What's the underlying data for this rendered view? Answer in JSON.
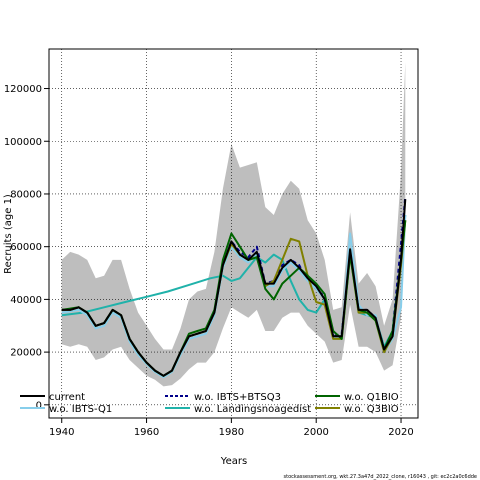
{
  "chart_data": {
    "type": "line",
    "xlabel": "Years",
    "ylabel": "Recruits (age 1)",
    "xlim": [
      1937,
      2024
    ],
    "ylim": [
      -5000,
      135000
    ],
    "x_ticks": [
      1940,
      1960,
      1980,
      2000,
      2020
    ],
    "y_ticks": [
      0,
      20000,
      40000,
      60000,
      80000,
      100000,
      120000
    ],
    "grid": true,
    "legend_position": "bottom",
    "footnote": "stockassessment.org, wkt.27.3a47d_2022_clone, r16043 , git: ec2c2a0c6dde",
    "confidence_band": {
      "color": "#bebebe",
      "x": [
        1940,
        1942,
        1944,
        1946,
        1948,
        1950,
        1952,
        1954,
        1956,
        1958,
        1960,
        1962,
        1964,
        1966,
        1968,
        1970,
        1972,
        1974,
        1976,
        1978,
        1980,
        1982,
        1984,
        1986,
        1988,
        1990,
        1992,
        1994,
        1996,
        1998,
        2000,
        2002,
        2004,
        2006,
        2008,
        2010,
        2012,
        2014,
        2016,
        2018,
        2020,
        2021
      ],
      "lower": [
        23000,
        22000,
        23000,
        22000,
        17000,
        18000,
        21000,
        22000,
        17000,
        14000,
        11000,
        9500,
        7000,
        7500,
        10000,
        13500,
        16000,
        16000,
        20000,
        29000,
        37000,
        35000,
        33000,
        36000,
        28000,
        28000,
        33000,
        35000,
        35000,
        30000,
        27000,
        24000,
        16000,
        17000,
        38000,
        22000,
        22000,
        20000,
        13000,
        15000,
        33000,
        68000
      ],
      "upper": [
        55000,
        58000,
        57000,
        55000,
        48000,
        49000,
        55000,
        55000,
        44000,
        35000,
        30000,
        25000,
        21000,
        21000,
        29000,
        40000,
        43000,
        44000,
        58000,
        82000,
        99000,
        90000,
        91000,
        92000,
        75000,
        72000,
        80000,
        85000,
        82000,
        70000,
        65000,
        55000,
        36000,
        37000,
        73000,
        46000,
        50000,
        45000,
        30000,
        40000,
        88000,
        130000
      ]
    },
    "series": [
      {
        "name": "current",
        "color": "#000000",
        "dash": "solid",
        "x": [
          1940,
          1942,
          1944,
          1946,
          1948,
          1950,
          1952,
          1954,
          1956,
          1958,
          1960,
          1962,
          1964,
          1966,
          1968,
          1970,
          1972,
          1974,
          1976,
          1978,
          1980,
          1982,
          1984,
          1986,
          1988,
          1990,
          1992,
          1994,
          1996,
          1998,
          2000,
          2002,
          2004,
          2006,
          2008,
          2010,
          2012,
          2014,
          2016,
          2018,
          2020,
          2021
        ],
        "y": [
          36000,
          36000,
          37000,
          35000,
          30000,
          31000,
          36000,
          34000,
          25000,
          20000,
          16000,
          13000,
          11000,
          13000,
          20000,
          26000,
          27000,
          28000,
          35000,
          53000,
          62000,
          57000,
          55000,
          58000,
          46000,
          46000,
          52000,
          55000,
          52000,
          48000,
          45000,
          40000,
          26000,
          26000,
          59000,
          36000,
          36000,
          33000,
          21000,
          26000,
          55000,
          78000
        ]
      },
      {
        "name": "w.o. IBTS+BTSQ3",
        "color": "#00008b",
        "dash": "dash",
        "x": [
          1940,
          1942,
          1944,
          1946,
          1948,
          1950,
          1952,
          1954,
          1956,
          1958,
          1960,
          1962,
          1964,
          1966,
          1968,
          1970,
          1972,
          1974,
          1976,
          1978,
          1980,
          1982,
          1984,
          1986,
          1988,
          1990,
          1992,
          1994,
          1996,
          1998,
          2000,
          2002,
          2004,
          2006,
          2008,
          2010,
          2012,
          2014,
          2016,
          2018,
          2020,
          2021
        ],
        "y": [
          36000,
          36000,
          37000,
          35000,
          30000,
          31000,
          36000,
          34000,
          25000,
          20000,
          16000,
          13000,
          11000,
          13000,
          20000,
          26000,
          27000,
          28000,
          35000,
          53000,
          62000,
          58000,
          56000,
          60000,
          46000,
          47000,
          53000,
          55000,
          53000,
          47000,
          44000,
          41000,
          26000,
          27000,
          58000,
          36000,
          36000,
          33000,
          21000,
          28000,
          61000,
          79000
        ]
      },
      {
        "name": "w.o. Q1BIO",
        "color": "#006400",
        "dash": "solid",
        "x": [
          1940,
          1942,
          1944,
          1946,
          1948,
          1950,
          1952,
          1954,
          1956,
          1958,
          1960,
          1962,
          1964,
          1966,
          1968,
          1970,
          1972,
          1974,
          1976,
          1978,
          1980,
          1982,
          1984,
          1986,
          1988,
          1990,
          1992,
          1994,
          1996,
          1998,
          2000,
          2002,
          2004,
          2006,
          2008,
          2010,
          2012,
          2014,
          2016,
          2018,
          2020,
          2021
        ],
        "y": [
          36000,
          36500,
          37000,
          35000,
          30000,
          31000,
          36000,
          34000,
          25000,
          20000,
          16000,
          13000,
          11000,
          13000,
          20000,
          27000,
          28000,
          29000,
          36000,
          55000,
          65000,
          60000,
          55000,
          56000,
          44000,
          40000,
          46000,
          49000,
          52000,
          49000,
          46000,
          42000,
          28000,
          25000,
          57000,
          36000,
          35000,
          32000,
          21000,
          28000,
          55000,
          70000
        ]
      },
      {
        "name": "w.o. IBTS-Q1",
        "color": "#87ceeb",
        "dash": "solid",
        "x": [
          1940,
          1942,
          1944,
          1946,
          1948,
          1950,
          1952,
          1954,
          1956,
          1958,
          1960,
          1962,
          1964,
          1966,
          1968,
          1970,
          1972,
          1974,
          1976,
          1978,
          1980,
          1982,
          1984,
          1986,
          1988,
          1990,
          1992,
          1994,
          1996,
          1998,
          2000,
          2002,
          2004,
          2006,
          2008,
          2010,
          2012,
          2014,
          2016,
          2018,
          2020,
          2021
        ],
        "y": [
          35000,
          35500,
          36000,
          34000,
          29000,
          30000,
          35000,
          33000,
          24000,
          19000,
          15500,
          12500,
          10500,
          12500,
          19000,
          25000,
          26000,
          27000,
          34000,
          52000,
          60000,
          56000,
          54000,
          57000,
          45000,
          45000,
          51000,
          54000,
          51000,
          47000,
          44000,
          40000,
          25000,
          25000,
          65000,
          38000,
          34000,
          34000,
          20000,
          25000,
          37000,
          72000
        ]
      },
      {
        "name": "w.o. Landingsnoagedist",
        "color": "#20b2aa",
        "dash": "solid",
        "x": [
          1940,
          1945,
          1950,
          1955,
          1960,
          1965,
          1970,
          1975,
          1978,
          1980,
          1982,
          1984,
          1986,
          1988,
          1990,
          1992,
          1994,
          1996,
          1998,
          2000,
          2002,
          2004,
          2006,
          2008,
          2010,
          2012,
          2014,
          2016,
          2018,
          2020,
          2021
        ],
        "y": [
          34000,
          35000,
          37000,
          39000,
          41000,
          43000,
          45500,
          48000,
          49000,
          47000,
          48000,
          52000,
          56000,
          54000,
          57000,
          55000,
          47000,
          40000,
          36000,
          35000,
          40000,
          26000,
          26000,
          58000,
          35000,
          34000,
          33000,
          22000,
          28000,
          55000,
          72000
        ]
      },
      {
        "name": "w.o. Q3BIO",
        "color": "#808000",
        "dash": "solid",
        "x": [
          1940,
          1942,
          1944,
          1946,
          1948,
          1950,
          1952,
          1954,
          1956,
          1958,
          1960,
          1962,
          1964,
          1966,
          1968,
          1970,
          1972,
          1974,
          1976,
          1978,
          1980,
          1982,
          1984,
          1986,
          1988,
          1990,
          1992,
          1994,
          1996,
          1998,
          2000,
          2002,
          2004,
          2006,
          2008,
          2010,
          2012,
          2014,
          2016,
          2018,
          2020,
          2021
        ],
        "y": [
          36000,
          36000,
          37000,
          35000,
          30000,
          31000,
          36000,
          34000,
          25000,
          20000,
          16000,
          13000,
          11000,
          13000,
          20000,
          26000,
          27000,
          28000,
          35000,
          53000,
          61000,
          57000,
          55000,
          56000,
          45000,
          47000,
          55000,
          63000,
          62000,
          49000,
          39000,
          38000,
          25000,
          25000,
          57000,
          35000,
          35000,
          32000,
          20000,
          26000,
          53000,
          70000
        ]
      }
    ]
  }
}
